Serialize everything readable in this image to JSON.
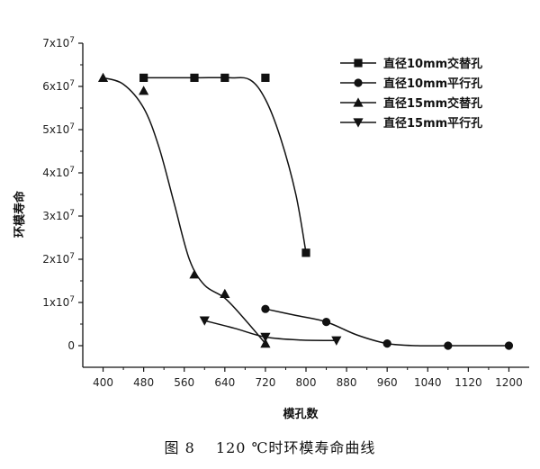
{
  "chart_data": {
    "type": "line",
    "title": "",
    "xlabel": "模孔数",
    "ylabel": "环模寿命",
    "xlim": [
      360,
      1240
    ],
    "ylim": [
      -5000000,
      70000000
    ],
    "x_ticks": [
      400,
      480,
      560,
      640,
      720,
      800,
      880,
      960,
      1040,
      1120,
      1200
    ],
    "y_ticks": [
      {
        "value": 0,
        "base": "0",
        "exp": ""
      },
      {
        "value": 10000000,
        "base": "1x10",
        "exp": "7"
      },
      {
        "value": 20000000,
        "base": "2x10",
        "exp": "7"
      },
      {
        "value": 30000000,
        "base": "3x10",
        "exp": "7"
      },
      {
        "value": 40000000,
        "base": "4x10",
        "exp": "7"
      },
      {
        "value": 50000000,
        "base": "5x10",
        "exp": "7"
      },
      {
        "value": 60000000,
        "base": "6x10",
        "exp": "7"
      },
      {
        "value": 70000000,
        "base": "7x10",
        "exp": "7"
      }
    ],
    "legend_position": "top-right",
    "grid": false,
    "series": [
      {
        "name": "直径10mm交替孔",
        "marker": "square",
        "points": [
          [
            480,
            62000000
          ],
          [
            580,
            62000000
          ],
          [
            640,
            62000000
          ],
          [
            720,
            62000000
          ],
          [
            800,
            21500000
          ]
        ],
        "curve": [
          [
            480,
            62000000
          ],
          [
            580,
            62000000
          ],
          [
            650,
            62000000
          ],
          [
            690,
            61500000
          ],
          [
            720,
            57000000
          ],
          [
            750,
            48000000
          ],
          [
            780,
            35000000
          ],
          [
            800,
            21500000
          ]
        ]
      },
      {
        "name": "直径10mm平行孔",
        "marker": "circle",
        "points": [
          [
            720,
            8500000
          ],
          [
            840,
            5500000
          ],
          [
            960,
            500000
          ],
          [
            1080,
            0
          ],
          [
            1200,
            0
          ]
        ],
        "curve": [
          [
            720,
            8500000
          ],
          [
            780,
            7000000
          ],
          [
            840,
            5500000
          ],
          [
            900,
            2500000
          ],
          [
            960,
            500000
          ],
          [
            1020,
            0
          ],
          [
            1080,
            0
          ],
          [
            1140,
            0
          ],
          [
            1200,
            0
          ]
        ]
      },
      {
        "name": "直径15mm交替孔",
        "marker": "triangle-up",
        "points": [
          [
            400,
            62000000
          ],
          [
            480,
            59000000
          ],
          [
            580,
            16500000
          ],
          [
            640,
            12000000
          ],
          [
            720,
            500000
          ]
        ],
        "curve": [
          [
            400,
            62000000
          ],
          [
            440,
            60500000
          ],
          [
            480,
            55000000
          ],
          [
            510,
            46000000
          ],
          [
            540,
            33000000
          ],
          [
            570,
            20000000
          ],
          [
            600,
            14000000
          ],
          [
            640,
            11000000
          ],
          [
            680,
            6000000
          ],
          [
            720,
            500000
          ]
        ]
      },
      {
        "name": "直径15mm平行孔",
        "marker": "triangle-down",
        "points": [
          [
            600,
            5800000
          ],
          [
            720,
            2000000
          ],
          [
            860,
            1200000
          ]
        ],
        "curve": [
          [
            600,
            5800000
          ],
          [
            660,
            4000000
          ],
          [
            720,
            2000000
          ],
          [
            790,
            1300000
          ],
          [
            860,
            1200000
          ]
        ]
      }
    ]
  },
  "caption": {
    "text": "图 8　 120 ℃时环模寿命曲线"
  }
}
